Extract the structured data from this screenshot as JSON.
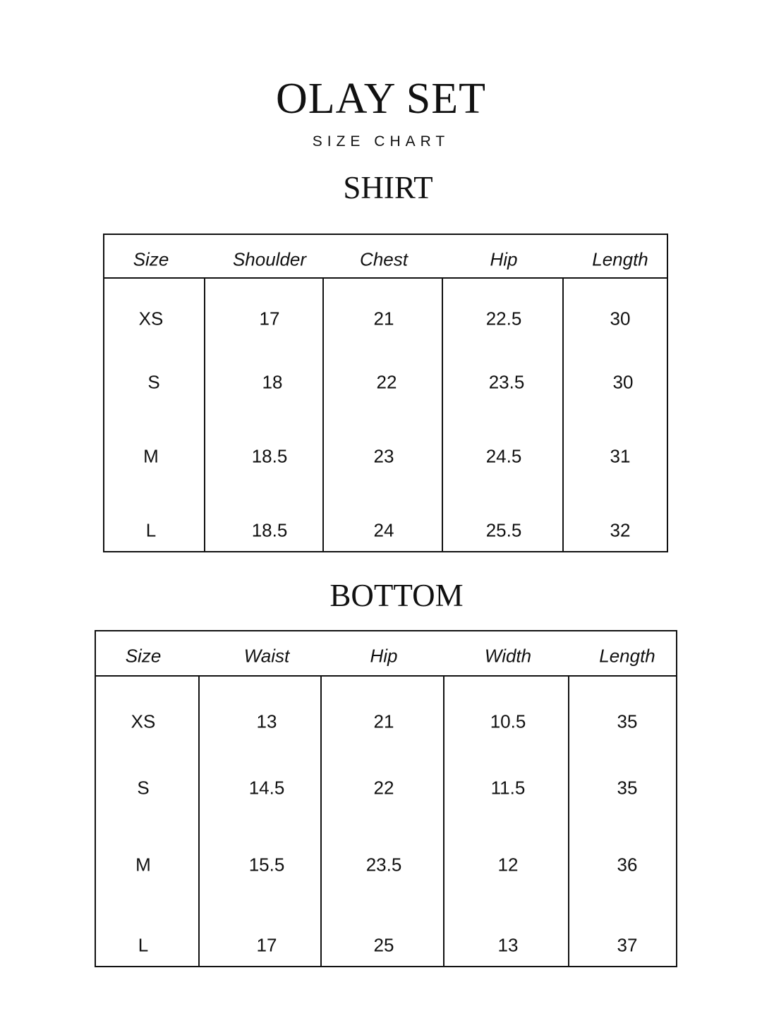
{
  "title": "OLAY SET",
  "subtitle": "SIZE CHART",
  "shirt": {
    "heading": "SHIRT",
    "columns": [
      "Size",
      "Shoulder",
      "Chest",
      "Hip",
      "Length"
    ],
    "rows": [
      [
        "XS",
        "17",
        "21",
        "22.5",
        "30"
      ],
      [
        "S",
        "18",
        "22",
        "23.5",
        "30"
      ],
      [
        "M",
        "18.5",
        "23",
        "24.5",
        "31"
      ],
      [
        "L",
        "18.5",
        "24",
        "25.5",
        "32"
      ]
    ]
  },
  "bottom": {
    "heading": "BOTTOM",
    "columns": [
      "Size",
      "Waist",
      "Hip",
      "Width",
      "Length"
    ],
    "rows": [
      [
        "XS",
        "13",
        "21",
        "10.5",
        "35"
      ],
      [
        "S",
        "14.5",
        "22",
        "11.5",
        "35"
      ],
      [
        "M",
        "15.5",
        "23.5",
        "12",
        "36"
      ],
      [
        "L",
        "17",
        "25",
        "13",
        "37"
      ]
    ]
  }
}
